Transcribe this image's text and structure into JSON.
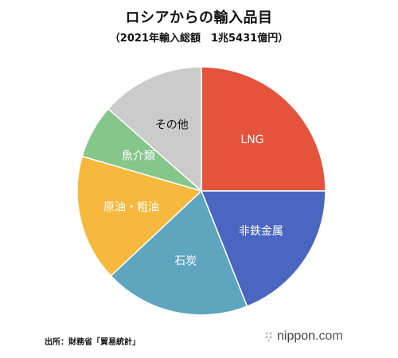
{
  "header": {
    "title": "ロシアからの輸入品目",
    "subtitle": "（2021年輸入総額　1兆5431億円）"
  },
  "chart_data": {
    "type": "pie",
    "title": "ロシアからの輸入品目",
    "subtitle": "（2021年輸入総額　1兆5431億円）",
    "total_label": "1兆5431億円",
    "start_angle_deg": 0,
    "direction": "clockwise",
    "slices": [
      {
        "label": "LNG",
        "value": 25.0,
        "color": "#e5533c",
        "label_color": "#ffffff"
      },
      {
        "label": "非鉄金属",
        "value": 19.0,
        "color": "#4a66c0",
        "label_color": "#ffffff"
      },
      {
        "label": "石炭",
        "value": 19.0,
        "color": "#5ea5bf",
        "label_color": "#ffffff"
      },
      {
        "label": "原油・粗油",
        "value": 16.5,
        "color": "#f6b93e",
        "label_color": "#ffffff"
      },
      {
        "label": "魚介類",
        "value": 7.0,
        "color": "#85c68a",
        "label_color": "#ffffff"
      },
      {
        "label": "その他",
        "value": 13.5,
        "color": "#cbcbcb",
        "label_color": "#111111"
      }
    ],
    "legend": "none"
  },
  "footer": {
    "source": "出所：財務省「貿易統計」",
    "brand_name": "nippon",
    "brand_domain": ".com"
  }
}
